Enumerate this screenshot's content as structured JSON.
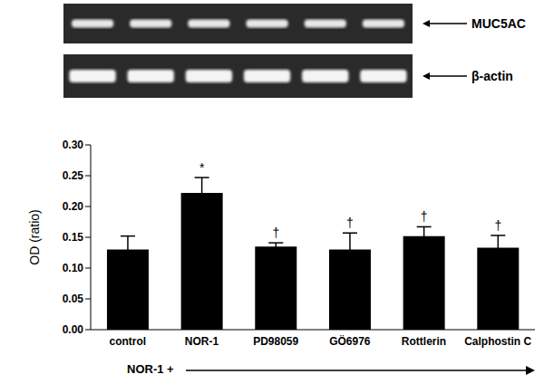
{
  "chart_data": {
    "type": "bar",
    "categories": [
      "control",
      "NOR-1",
      "PD98059",
      "GÖ6976",
      "Rottlerin",
      "Calphostin C"
    ],
    "values": [
      0.13,
      0.222,
      0.135,
      0.13,
      0.152,
      0.133
    ],
    "errors": [
      0.022,
      0.025,
      0.006,
      0.027,
      0.015,
      0.02
    ],
    "significance_marks": [
      null,
      "*",
      "†",
      "†",
      "†",
      "†"
    ],
    "color": "#000000",
    "y_label": "OD (ratio)",
    "ylim": [
      0,
      0.3
    ],
    "yticks": [
      {
        "value": 0,
        "label": "0.00"
      },
      {
        "value": 0.05,
        "label": "0.05"
      },
      {
        "value": 0.1,
        "label": "0.10"
      },
      {
        "value": 0.15,
        "label": "0.15"
      },
      {
        "value": 0.2,
        "label": "0.20"
      },
      {
        "value": 0.25,
        "label": "0.25"
      },
      {
        "value": 0.3,
        "label": "0.30"
      }
    ],
    "grid": false,
    "bracket_label": "NOR-1 +"
  },
  "gel": {
    "labels": [
      "MUC5AC",
      "β-actin"
    ]
  }
}
